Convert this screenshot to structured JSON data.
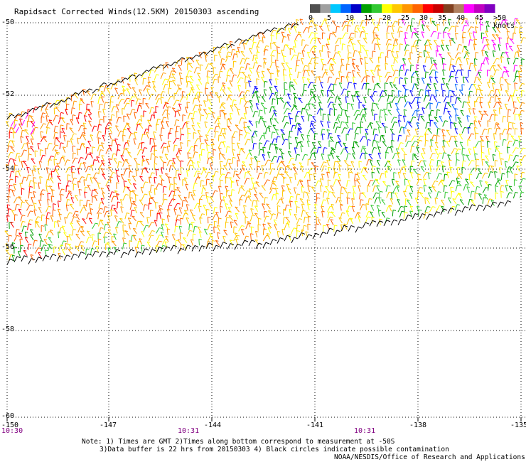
{
  "title": "Rapidsact Corrected Winds(12.5KM) 20150303 ascending",
  "legend": {
    "labels": [
      "0",
      "5",
      "10",
      "15",
      "20",
      "25",
      "30",
      "35",
      "40",
      "45",
      ">50 knots"
    ],
    "colors": [
      "#505050",
      "#a0a0a0",
      "#00c8ff",
      "#0064ff",
      "#0000c8",
      "#00a000",
      "#32c832",
      "#ffff00",
      "#ffc800",
      "#ff9600",
      "#ff6400",
      "#ff0000",
      "#c80000",
      "#804020",
      "#b08060",
      "#ff00ff",
      "#c000c0",
      "#8000c0"
    ]
  },
  "lat_labels": [
    "-50",
    "-52",
    "-54",
    "-56",
    "-58",
    "-60"
  ],
  "lon_labels": [
    "-150",
    "-147",
    "-144",
    "-141",
    "-138",
    "-135"
  ],
  "time_labels": [
    "10:30",
    "10:31",
    "10:31"
  ],
  "notes": {
    "line1": "Note: 1) Times are GMT 2)Times along bottom correspond to measurement at -50S",
    "line2": "3)Data buffer is 22 hrs from 20150303 4) Black circles indicate possible contamination",
    "line3": "NOAA/NESDIS/Office of Research and Applications"
  },
  "colors": {
    "grid": "#000000",
    "time": "#800080"
  }
}
